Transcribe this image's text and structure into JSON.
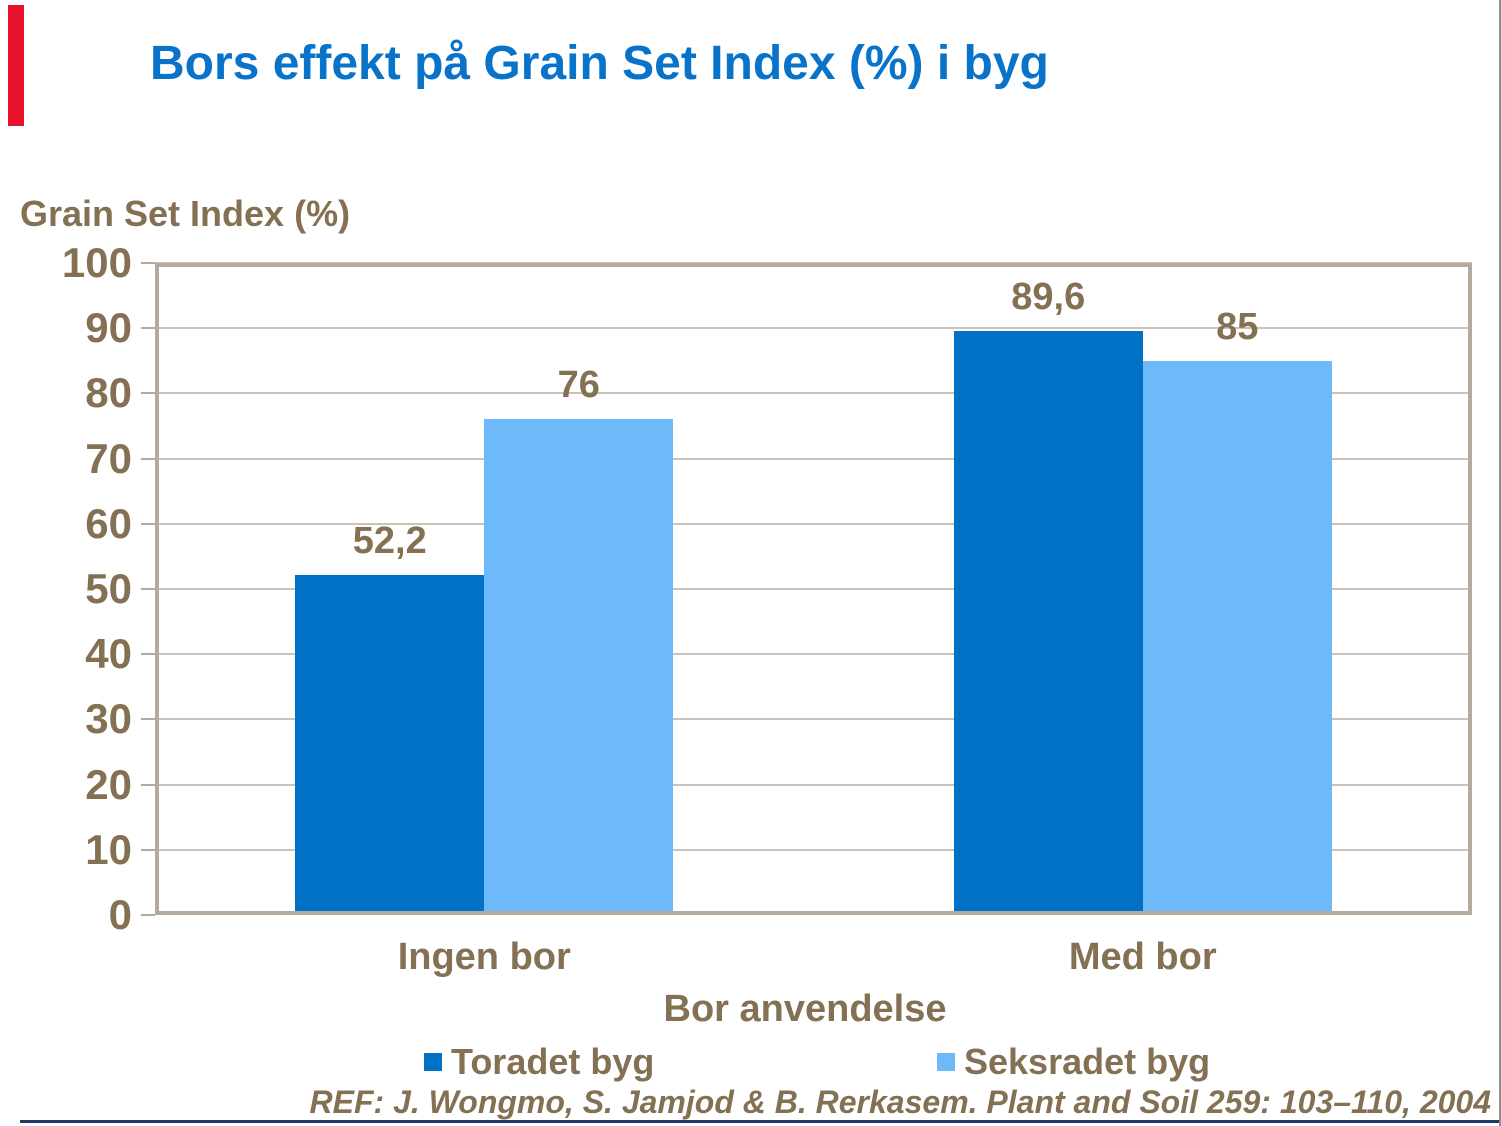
{
  "title": "Bors effekt på Grain Set Index (%) i byg",
  "reference": "REF: J. Wongmo, S. Jamjod & B. Rerkasem. Plant and Soil 259: 103–110, 2004",
  "colors": {
    "title_blue": "#0973C9",
    "series_dark_blue": "#0071C5",
    "series_light_blue": "#6DB9FA",
    "text_brown": "#847154",
    "gridline": "#CBC3B7",
    "plot_frame": "#B4AB9E",
    "accent_red": "#E8132B",
    "bottom_rule_navy": "#1F3865"
  },
  "chart_data": {
    "type": "bar",
    "title": "Bors effekt på Grain Set Index (%) i byg",
    "categories": [
      "Ingen bor",
      "Med bor"
    ],
    "series": [
      {
        "name": "Toradet byg",
        "color": "#0071C5",
        "values": [
          52.2,
          89.6
        ],
        "value_labels": [
          "52,2",
          "89,6"
        ]
      },
      {
        "name": "Seksradet byg",
        "color": "#6DB9FA",
        "values": [
          76,
          85
        ],
        "value_labels": [
          "76",
          "85"
        ]
      }
    ],
    "xlabel": "Bor anvendelse",
    "ylabel": "Grain Set Index (%)",
    "ylim": [
      0,
      100
    ],
    "yticks": [
      0,
      10,
      20,
      30,
      40,
      50,
      60,
      70,
      80,
      90,
      100
    ],
    "grid": true,
    "legend_position": "bottom"
  }
}
